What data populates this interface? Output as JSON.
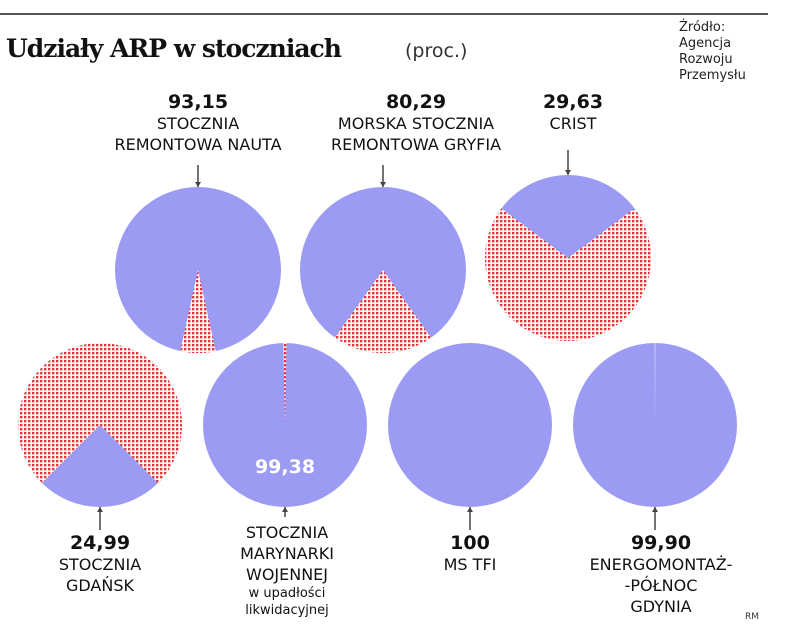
{
  "chart_data": {
    "type": "pie",
    "title": "Udziały ARP w stoczniach",
    "unit": "(proc.)",
    "source": [
      "Źródło:",
      "Agencja",
      "Rozwoju",
      "Przemysłu"
    ],
    "credit": "RM",
    "colors": {
      "share": "#9b9bf3",
      "rest": "#e8343a"
    },
    "pies": [
      {
        "value": 93.15,
        "label_value": "93,15",
        "name": [
          "STOCZNIA",
          "REMONTOWA NAUTA"
        ],
        "note": []
      },
      {
        "value": 80.29,
        "label_value": "80,29",
        "name": [
          "MORSKA STOCZNIA",
          "REMONTOWA GRYFIA"
        ],
        "note": []
      },
      {
        "value": 29.63,
        "label_value": "29,63",
        "name": [
          "CRIST"
        ],
        "note": []
      },
      {
        "value": 24.99,
        "label_value": "24,99",
        "name": [
          "STOCZNIA",
          "GDAŃSK"
        ],
        "note": []
      },
      {
        "value": 99.38,
        "label_value": "99,38",
        "name": [
          "STOCZNIA",
          "MARYNARKI",
          "WOJENNEJ"
        ],
        "note": [
          "w upadłości",
          "likwidacyjnej"
        ]
      },
      {
        "value": 100,
        "label_value": "100",
        "name": [
          "MS TFI"
        ],
        "note": []
      },
      {
        "value": 99.9,
        "label_value": "99,90",
        "name": [
          "ENERGOMONTAŻ-",
          "-PÓŁNOC",
          "GDYNIA"
        ],
        "note": []
      }
    ]
  }
}
